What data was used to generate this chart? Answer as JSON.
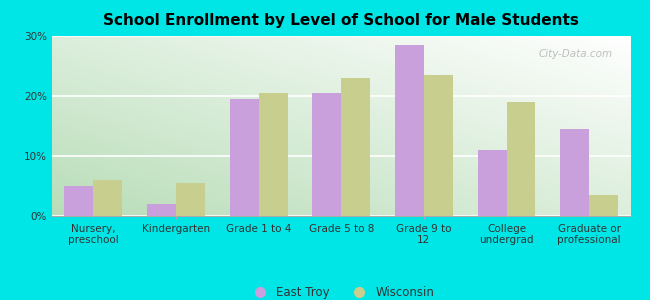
{
  "title": "School Enrollment by Level of School for Male Students",
  "categories": [
    "Nursery,\npreschool",
    "Kindergarten",
    "Grade 1 to 4",
    "Grade 5 to 8",
    "Grade 9 to\n12",
    "College\nundergrad",
    "Graduate or\nprofessional"
  ],
  "east_troy": [
    5.0,
    2.0,
    19.5,
    20.5,
    28.5,
    11.0,
    14.5
  ],
  "wisconsin": [
    6.0,
    5.5,
    20.5,
    23.0,
    23.5,
    19.0,
    3.5
  ],
  "color_east_troy": "#c9a0dc",
  "color_wisconsin": "#c8cf8e",
  "background_color": "#00e5e5",
  "grad_color_green": "#b8ddb8",
  "grad_color_white": "#f8fdf8",
  "ylim": [
    0,
    30
  ],
  "yticks": [
    0,
    10,
    20,
    30
  ],
  "ytick_labels": [
    "0%",
    "10%",
    "20%",
    "30%"
  ],
  "legend_labels": [
    "East Troy",
    "Wisconsin"
  ],
  "watermark": "City-Data.com",
  "title_fontsize": 11,
  "tick_fontsize": 7.5,
  "bar_width": 0.35
}
